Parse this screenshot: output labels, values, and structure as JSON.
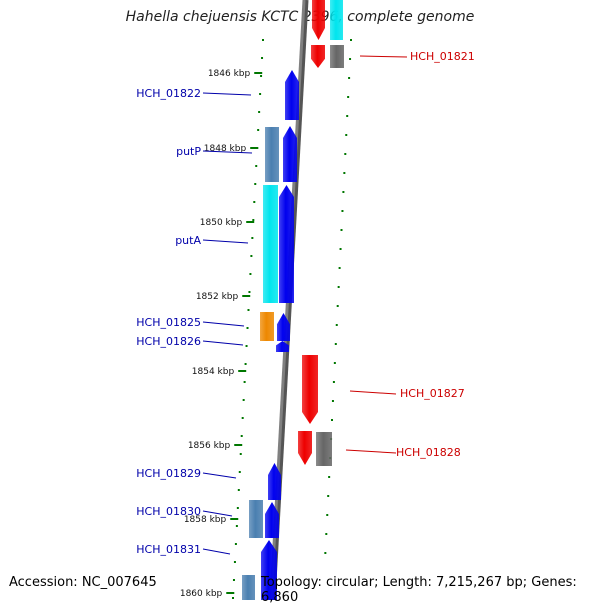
{
  "title": "Hahella chejuensis KCTC 2396, complete genome",
  "footer": {
    "accession": "Accession: NC_007645",
    "topology": "Topology: circular; Length: 7,215,267 bp; Genes: 6,860"
  },
  "colors": {
    "forward_label": "#0000aa",
    "reverse_label": "#cc0000",
    "tick": "#007700",
    "blue_gene": "#0000ee",
    "red_gene": "#ee0000",
    "cyan_gene": "#00e5ee",
    "gray_gene": "#666666",
    "orange_gene": "#ee8800",
    "steel_gene": "#4a7fb0",
    "backbone": "#808080"
  },
  "scale_labels": [
    "1846 kbp",
    "1848 kbp",
    "1850 kbp",
    "1852 kbp",
    "1854 kbp",
    "1856 kbp",
    "1858 kbp",
    "1860 kbp"
  ],
  "gene_labels": {
    "forward": [
      "HCH_01822",
      "putP",
      "putA",
      "HCH_01825",
      "HCH_01826",
      "HCH_01829",
      "HCH_01830",
      "HCH_01831"
    ],
    "reverse": [
      "HCH_01821",
      "HCH_01827",
      "HCH_01828"
    ]
  }
}
